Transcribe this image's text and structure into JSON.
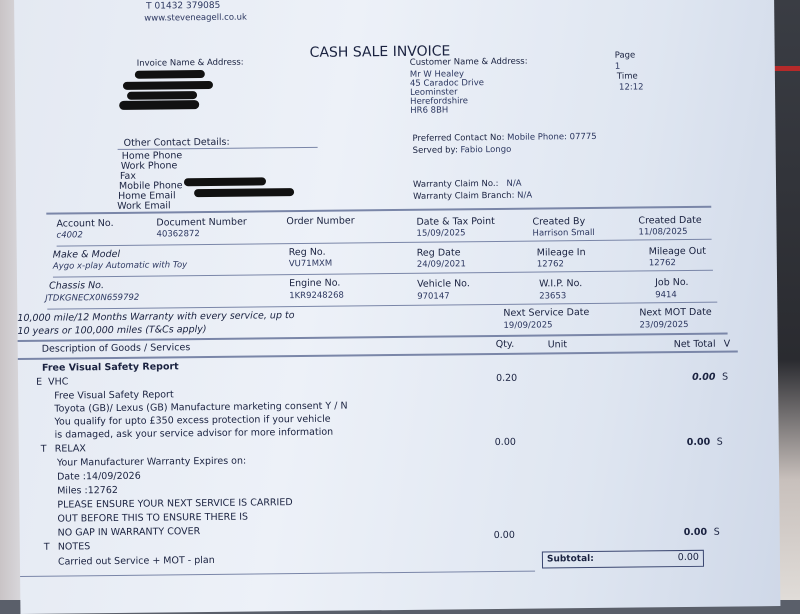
{
  "header": {
    "phone": "T 01432 379085",
    "website": "www.steveneagell.co.uk",
    "title": "CASH SALE INVOICE"
  },
  "invoice_address": {
    "label": "Invoice Name & Address:"
  },
  "customer": {
    "label": "Customer Name & Address:",
    "lines": [
      "Mr W Healey",
      "45 Caradoc Drive",
      "Leominster",
      "Herefordshire",
      "HR6 8BH"
    ]
  },
  "page": {
    "label": "Page",
    "value": "1",
    "time_label": "Time",
    "time_value": "12:12"
  },
  "other_contact": {
    "label": "Other Contact Details:",
    "fields": [
      "Home Phone",
      "Work Phone",
      "Fax",
      "Mobile Phone",
      "Home Email",
      "Work Email"
    ]
  },
  "contact": {
    "preferred_label": "Preferred Contact No:",
    "preferred_value": "Mobile Phone: 07775",
    "served_label": "Served by:",
    "served_value": "Fabio Longo",
    "warranty_no_label": "Warranty Claim No.:",
    "warranty_no_value": "N/A",
    "warranty_branch_label": "Warranty Claim Branch:",
    "warranty_branch_value": "N/A"
  },
  "row1": [
    {
      "label": "Account No.",
      "value": "c4002"
    },
    {
      "label": "Document Number",
      "value": "40362872"
    },
    {
      "label": "Order Number",
      "value": ""
    },
    {
      "label": "Date & Tax Point",
      "value": "15/09/2025"
    },
    {
      "label": "Created By",
      "value": "Harrison Small"
    },
    {
      "label": "Created Date",
      "value": "11/08/2025"
    }
  ],
  "row2": [
    {
      "label": "Make & Model",
      "value": "Aygo x-play Automatic with Toy"
    },
    {
      "label": "Reg No.",
      "value": "VU71MXM"
    },
    {
      "label": "Reg Date",
      "value": "24/09/2021"
    },
    {
      "label": "Mileage In",
      "value": "12762"
    },
    {
      "label": "Mileage Out",
      "value": "12762"
    }
  ],
  "row3": [
    {
      "label": "Chassis No.",
      "value": "JTDKGNECX0N659792"
    },
    {
      "label": "Engine No.",
      "value": "1KR9248268"
    },
    {
      "label": "Vehicle No.",
      "value": "970147"
    },
    {
      "label": "W.I.P. No.",
      "value": "23653"
    },
    {
      "label": "Job No.",
      "value": "9414"
    }
  ],
  "warranty": {
    "line1": "10,000 mile/12 Months Warranty with every service, up to",
    "line2": "10 years or 100,000 miles (T&Cs apply)",
    "next_service_label": "Next Service Date",
    "next_service_value": "19/09/2025",
    "next_mot_label": "Next MOT Date",
    "next_mot_value": "23/09/2025"
  },
  "table": {
    "headers": {
      "description": "Description of Goods / Services",
      "qty": "Qty.",
      "unit": "Unit",
      "net_total": "Net Total",
      "vat": "V"
    },
    "section": "Free Visual Safety Report",
    "items": [
      {
        "code": "E",
        "name": "VHC",
        "qty": "0.20",
        "net": "0.00",
        "vat": "S",
        "notes": [
          "Free Visual Safety Report",
          "Toyota (GB)/ Lexus (GB) Manufacture marketing consent   Y / N",
          "You qualify for upto £350 excess protection if your vehicle",
          "is damaged, ask your service advisor for more information"
        ]
      },
      {
        "code": "T",
        "name": "RELAX",
        "qty": "0.00",
        "net": "0.00",
        "vat": "S",
        "notes": [
          "Your Manufacturer Warranty Expires on:",
          "Date :14/09/2026",
          "Miles :12762",
          "PLEASE ENSURE YOUR NEXT SERVICE IS CARRIED",
          "OUT BEFORE THIS TO ENSURE THERE IS",
          "NO GAP IN WARRANTY COVER"
        ]
      },
      {
        "code": "T",
        "name": "NOTES",
        "qty": "0.00",
        "net": "0.00",
        "vat": "S",
        "notes": [
          "Carried out Service + MOT - plan"
        ]
      }
    ],
    "subtotal_label": "Subtotal:",
    "subtotal_value": "0.00"
  }
}
